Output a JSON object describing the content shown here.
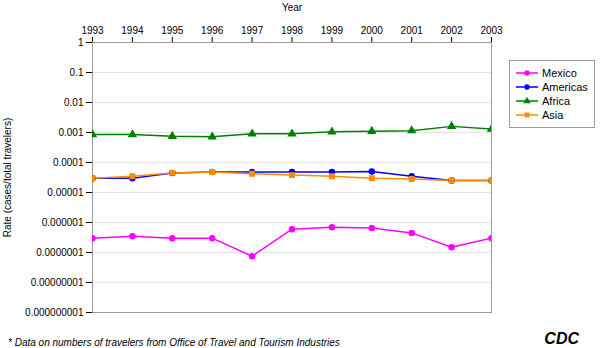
{
  "chart_data": {
    "type": "line",
    "xlabel": "Year",
    "ylabel": "Rate (cases/total travelers)",
    "x": [
      1993,
      1994,
      1995,
      1996,
      1997,
      1998,
      1999,
      2000,
      2001,
      2002,
      2003
    ],
    "series": [
      {
        "name": "Mexico",
        "color": "#FF00FF",
        "marker": "circle",
        "values": [
          3e-07,
          3.5e-07,
          3e-07,
          3e-07,
          7.5e-08,
          6e-07,
          7e-07,
          6.5e-07,
          4.5e-07,
          1.5e-07,
          3e-07
        ]
      },
      {
        "name": "Americas",
        "color": "#0000FF",
        "marker": "circle",
        "values": [
          3e-05,
          3e-05,
          4.5e-05,
          4.8e-05,
          4.8e-05,
          4.8e-05,
          4.8e-05,
          5e-05,
          3.5e-05,
          2.5e-05,
          2.5e-05
        ]
      },
      {
        "name": "Africa",
        "color": "#008000",
        "marker": "triangle",
        "values": [
          0.00085,
          0.00085,
          0.00075,
          0.00072,
          0.0009,
          0.0009,
          0.00105,
          0.0011,
          0.00115,
          0.0016,
          0.0013
        ]
      },
      {
        "name": "Asia",
        "color": "#FF8C00",
        "marker": "square",
        "values": [
          3e-05,
          3.5e-05,
          4.5e-05,
          4.8e-05,
          4.2e-05,
          3.8e-05,
          3.5e-05,
          3e-05,
          2.8e-05,
          2.5e-05,
          2.5e-05
        ]
      }
    ],
    "xlim": [
      1993,
      2003
    ],
    "xticks": [
      1993,
      1994,
      1995,
      1996,
      1997,
      1998,
      1999,
      2000,
      2001,
      2002,
      2003
    ],
    "ylim": [
      1e-09,
      1
    ],
    "yticks": [
      1,
      0.1,
      0.01,
      0.001,
      0.0001,
      1e-05,
      1e-06,
      1e-07,
      1e-08,
      1e-09
    ],
    "log": "y",
    "grid": true,
    "legend": "right",
    "annotations": [
      "* Data on numbers of travelers from Office of Travel and Tourism Industries",
      "CDC"
    ]
  }
}
